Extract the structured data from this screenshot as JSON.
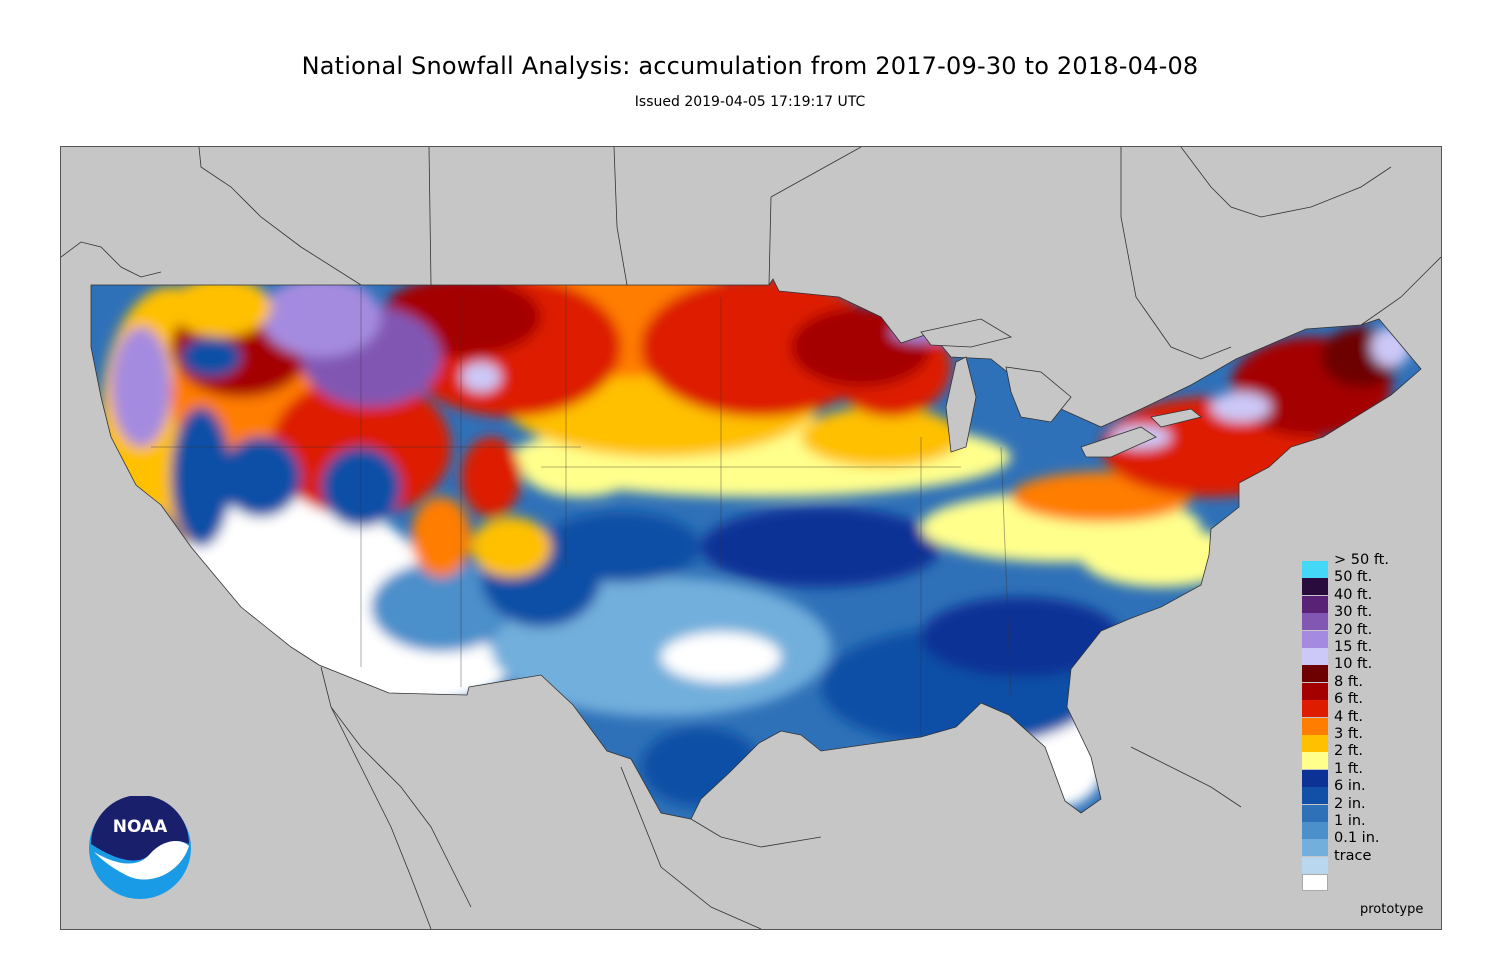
{
  "header": {
    "title": "National Snowfall Analysis: accumulation from 2017-09-30 to 2018-04-08",
    "subtitle": "Issued 2019-04-05 17:19:17 UTC"
  },
  "legend": {
    "items": [
      {
        "label": "> 50 ft.",
        "color": "#44d7f7"
      },
      {
        "label": "50 ft.",
        "color": "#2a0b3d"
      },
      {
        "label": "40 ft.",
        "color": "#5a2277"
      },
      {
        "label": "30 ft.",
        "color": "#8157b3"
      },
      {
        "label": "20 ft.",
        "color": "#a58be0"
      },
      {
        "label": "15 ft.",
        "color": "#ccc8f7"
      },
      {
        "label": "10 ft.",
        "color": "#6d0000"
      },
      {
        "label": "8 ft.",
        "color": "#a50000"
      },
      {
        "label": "6 ft.",
        "color": "#dd1c00"
      },
      {
        "label": "4 ft.",
        "color": "#ff7d00"
      },
      {
        "label": "3 ft.",
        "color": "#ffc000"
      },
      {
        "label": "2 ft.",
        "color": "#ffff8c"
      },
      {
        "label": "1 ft.",
        "color": "#0c3296"
      },
      {
        "label": "6 in.",
        "color": "#1150a6"
      },
      {
        "label": "2 in.",
        "color": "#2f71b8"
      },
      {
        "label": "1 in.",
        "color": "#4b8fcb"
      },
      {
        "label": "0.1 in.",
        "color": "#72afdc"
      },
      {
        "label": "trace",
        "color": "#b9d7ef"
      },
      {
        "label": "",
        "color": "#ffffff"
      }
    ]
  },
  "footnote": "prototype",
  "logo": {
    "text": "NOAA",
    "icon": "noaa-logo-icon"
  },
  "colors": {
    "background": "#c6c6c6",
    "outline": "#333333"
  }
}
